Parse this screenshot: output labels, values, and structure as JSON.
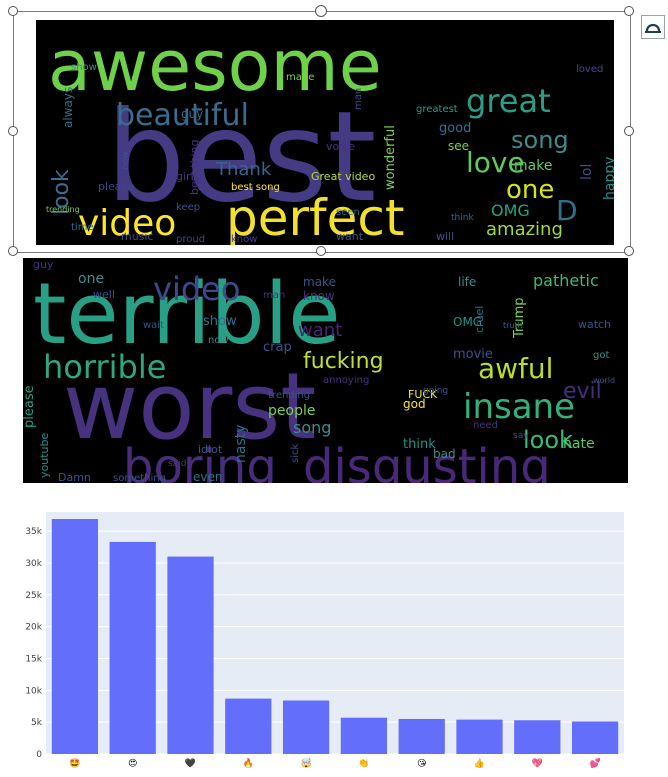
{
  "wordcloud_positive": {
    "words": [
      {
        "text": "awesome",
        "color": "#6fd14a",
        "size": 70
      },
      {
        "text": "best",
        "color": "#443b84",
        "size": 125
      },
      {
        "text": "perfect",
        "color": "#f2e02b",
        "size": 50
      },
      {
        "text": "beautiful",
        "color": "#3a6c8e",
        "size": 30
      },
      {
        "text": "great",
        "color": "#2a9d86",
        "size": 32
      },
      {
        "text": "video",
        "color": "#fde725",
        "size": 36
      },
      {
        "text": "love",
        "color": "#5ec962",
        "size": 28
      },
      {
        "text": "one",
        "color": "#d2e21b",
        "size": 26
      },
      {
        "text": "song",
        "color": "#3b8c8c",
        "size": 24
      },
      {
        "text": "look",
        "color": "#3b6e8e",
        "size": 22
      },
      {
        "text": "amazing",
        "color": "#9fda3a",
        "size": 18
      },
      {
        "text": "Thank",
        "color": "#31688e",
        "size": 18
      },
      {
        "text": "OMG",
        "color": "#20a486",
        "size": 16
      },
      {
        "text": "D",
        "color": "#2c728e",
        "size": 28
      },
      {
        "text": "make",
        "color": "#5ec962",
        "size": 14
      },
      {
        "text": "happy",
        "color": "#21918c",
        "size": 14
      },
      {
        "text": "lol",
        "color": "#3b528b",
        "size": 14
      },
      {
        "text": "wonderful",
        "color": "#7ad151",
        "size": 13
      },
      {
        "text": "good",
        "color": "#2c728e",
        "size": 13
      },
      {
        "text": "see",
        "color": "#7ad151",
        "size": 12
      },
      {
        "text": "always",
        "color": "#2c728e",
        "size": 12
      },
      {
        "text": "guy",
        "color": "#31688e",
        "size": 12
      },
      {
        "text": "voice",
        "color": "#46327e",
        "size": 11
      },
      {
        "text": "best thing",
        "color": "#46327e",
        "size": 11
      },
      {
        "text": "best song",
        "color": "#fde725",
        "size": 10
      },
      {
        "text": "Great video",
        "color": "#b5de2b",
        "size": 11
      },
      {
        "text": "girl",
        "color": "#46327e",
        "size": 11
      },
      {
        "text": "please",
        "color": "#414487",
        "size": 11
      },
      {
        "text": "want",
        "color": "#3b528b",
        "size": 11
      },
      {
        "text": "music",
        "color": "#3e4989",
        "size": 11
      },
      {
        "text": "time",
        "color": "#31688e",
        "size": 10
      },
      {
        "text": "will",
        "color": "#3b528b",
        "size": 11
      },
      {
        "text": "seen",
        "color": "#31688e",
        "size": 10
      },
      {
        "text": "keep",
        "color": "#3b528b",
        "size": 10
      },
      {
        "text": "made",
        "color": "#7ad151",
        "size": 10
      },
      {
        "text": "man",
        "color": "#3e4989",
        "size": 10
      },
      {
        "text": "greatest",
        "color": "#2a9d86",
        "size": 10
      },
      {
        "text": "show",
        "color": "#3b8c8c",
        "size": 10
      },
      {
        "text": "loved",
        "color": "#3e4989",
        "size": 10
      },
      {
        "text": "proud",
        "color": "#3e4989",
        "size": 10
      },
      {
        "text": "know",
        "color": "#414487",
        "size": 10
      },
      {
        "text": "now",
        "color": "#3b528b",
        "size": 9
      },
      {
        "text": "think",
        "color": "#31688e",
        "size": 9
      },
      {
        "text": "trending",
        "color": "#7ad151",
        "size": 8
      }
    ]
  },
  "wordcloud_negative": {
    "words": [
      {
        "text": "terrible",
        "color": "#27a085",
        "size": 85
      },
      {
        "text": "worst",
        "color": "#46327e",
        "size": 92
      },
      {
        "text": "boring",
        "color": "#472d7b",
        "size": 48
      },
      {
        "text": "disgusting",
        "color": "#482878",
        "size": 48
      },
      {
        "text": "horrible",
        "color": "#2ba782",
        "size": 32
      },
      {
        "text": "video",
        "color": "#3e4989",
        "size": 32
      },
      {
        "text": "insane",
        "color": "#33b17d",
        "size": 34
      },
      {
        "text": "awful",
        "color": "#b8de29",
        "size": 28
      },
      {
        "text": "fucking",
        "color": "#bfe02a",
        "size": 22
      },
      {
        "text": "look",
        "color": "#3aba76",
        "size": 24
      },
      {
        "text": "evil",
        "color": "#472d7b",
        "size": 22
      },
      {
        "text": "want",
        "color": "#482475",
        "size": 18
      },
      {
        "text": "pathetic",
        "color": "#3aba76",
        "size": 16
      },
      {
        "text": "nasty",
        "color": "#2c728e",
        "size": 14
      },
      {
        "text": "song",
        "color": "#3b8c8c",
        "size": 16
      },
      {
        "text": "people",
        "color": "#7ad151",
        "size": 14
      },
      {
        "text": "hate",
        "color": "#5ec962",
        "size": 14
      },
      {
        "text": "bad",
        "color": "#3b8c8c",
        "size": 12
      },
      {
        "text": "think",
        "color": "#21918c",
        "size": 13
      },
      {
        "text": "show",
        "color": "#2c728e",
        "size": 13
      },
      {
        "text": "crap",
        "color": "#3b528b",
        "size": 13
      },
      {
        "text": "please",
        "color": "#2a9d86",
        "size": 13
      },
      {
        "text": "movie",
        "color": "#3b528b",
        "size": 13
      },
      {
        "text": "OMG",
        "color": "#21918c",
        "size": 12
      },
      {
        "text": "Trump",
        "color": "#7ad151",
        "size": 13
      },
      {
        "text": "make",
        "color": "#3b528b",
        "size": 12
      },
      {
        "text": "know",
        "color": "#46327e",
        "size": 12
      },
      {
        "text": "one",
        "color": "#3b8c8c",
        "size": 14
      },
      {
        "text": "well",
        "color": "#3b528b",
        "size": 11
      },
      {
        "text": "guy",
        "color": "#46327e",
        "size": 11
      },
      {
        "text": "god",
        "color": "#fde725",
        "size": 12
      },
      {
        "text": "FUCK",
        "color": "#fde725",
        "size": 11
      },
      {
        "text": "idiot",
        "color": "#3b528b",
        "size": 11
      },
      {
        "text": "even",
        "color": "#2c728e",
        "size": 12
      },
      {
        "text": "Damn",
        "color": "#3b528b",
        "size": 11
      },
      {
        "text": "something",
        "color": "#3b528b",
        "size": 10
      },
      {
        "text": "youtube",
        "color": "#21918c",
        "size": 11
      },
      {
        "text": "life",
        "color": "#3b8c8c",
        "size": 12
      },
      {
        "text": "watch",
        "color": "#3b528b",
        "size": 11
      },
      {
        "text": "cruel",
        "color": "#2c728e",
        "size": 11
      },
      {
        "text": "annoying",
        "color": "#46327e",
        "size": 10
      },
      {
        "text": "trending",
        "color": "#3b528b",
        "size": 10
      },
      {
        "text": "need",
        "color": "#46327e",
        "size": 10
      },
      {
        "text": "sick",
        "color": "#3b528b",
        "size": 10
      },
      {
        "text": "wait",
        "color": "#3b528b",
        "size": 10
      },
      {
        "text": "now",
        "color": "#3b8c8c",
        "size": 10
      },
      {
        "text": "man",
        "color": "#46327e",
        "size": 10
      },
      {
        "text": "got",
        "color": "#3b8c8c",
        "size": 10
      },
      {
        "text": "say",
        "color": "#3b528b",
        "size": 9
      },
      {
        "text": "going",
        "color": "#3b528b",
        "size": 9
      },
      {
        "text": "said",
        "color": "#46327e",
        "size": 9
      },
      {
        "text": "truth",
        "color": "#2c728e",
        "size": 8
      },
      {
        "text": "world",
        "color": "#3b528b",
        "size": 8
      }
    ]
  },
  "toolbar": {
    "layout_icon": "layout-options-icon"
  },
  "chart_data": {
    "type": "bar",
    "categories": [
      "🤩",
      "😍",
      "🖤",
      "🔥",
      "🤯",
      "👏",
      "😘",
      "👍",
      "💖",
      "💕"
    ],
    "values": [
      36900,
      33300,
      31000,
      8700,
      8400,
      5700,
      5500,
      5400,
      5300,
      5100
    ],
    "ylim": [
      0,
      38000
    ],
    "yticks": [
      0,
      5000,
      10000,
      15000,
      20000,
      25000,
      30000,
      35000
    ],
    "ytick_labels": [
      "0",
      "5k",
      "10k",
      "15k",
      "20k",
      "25k",
      "30k",
      "35k"
    ],
    "bar_color": "#636efa",
    "plot_bg": "#e5ecf6",
    "grid": true,
    "title": "",
    "xlabel": "",
    "ylabel": ""
  }
}
